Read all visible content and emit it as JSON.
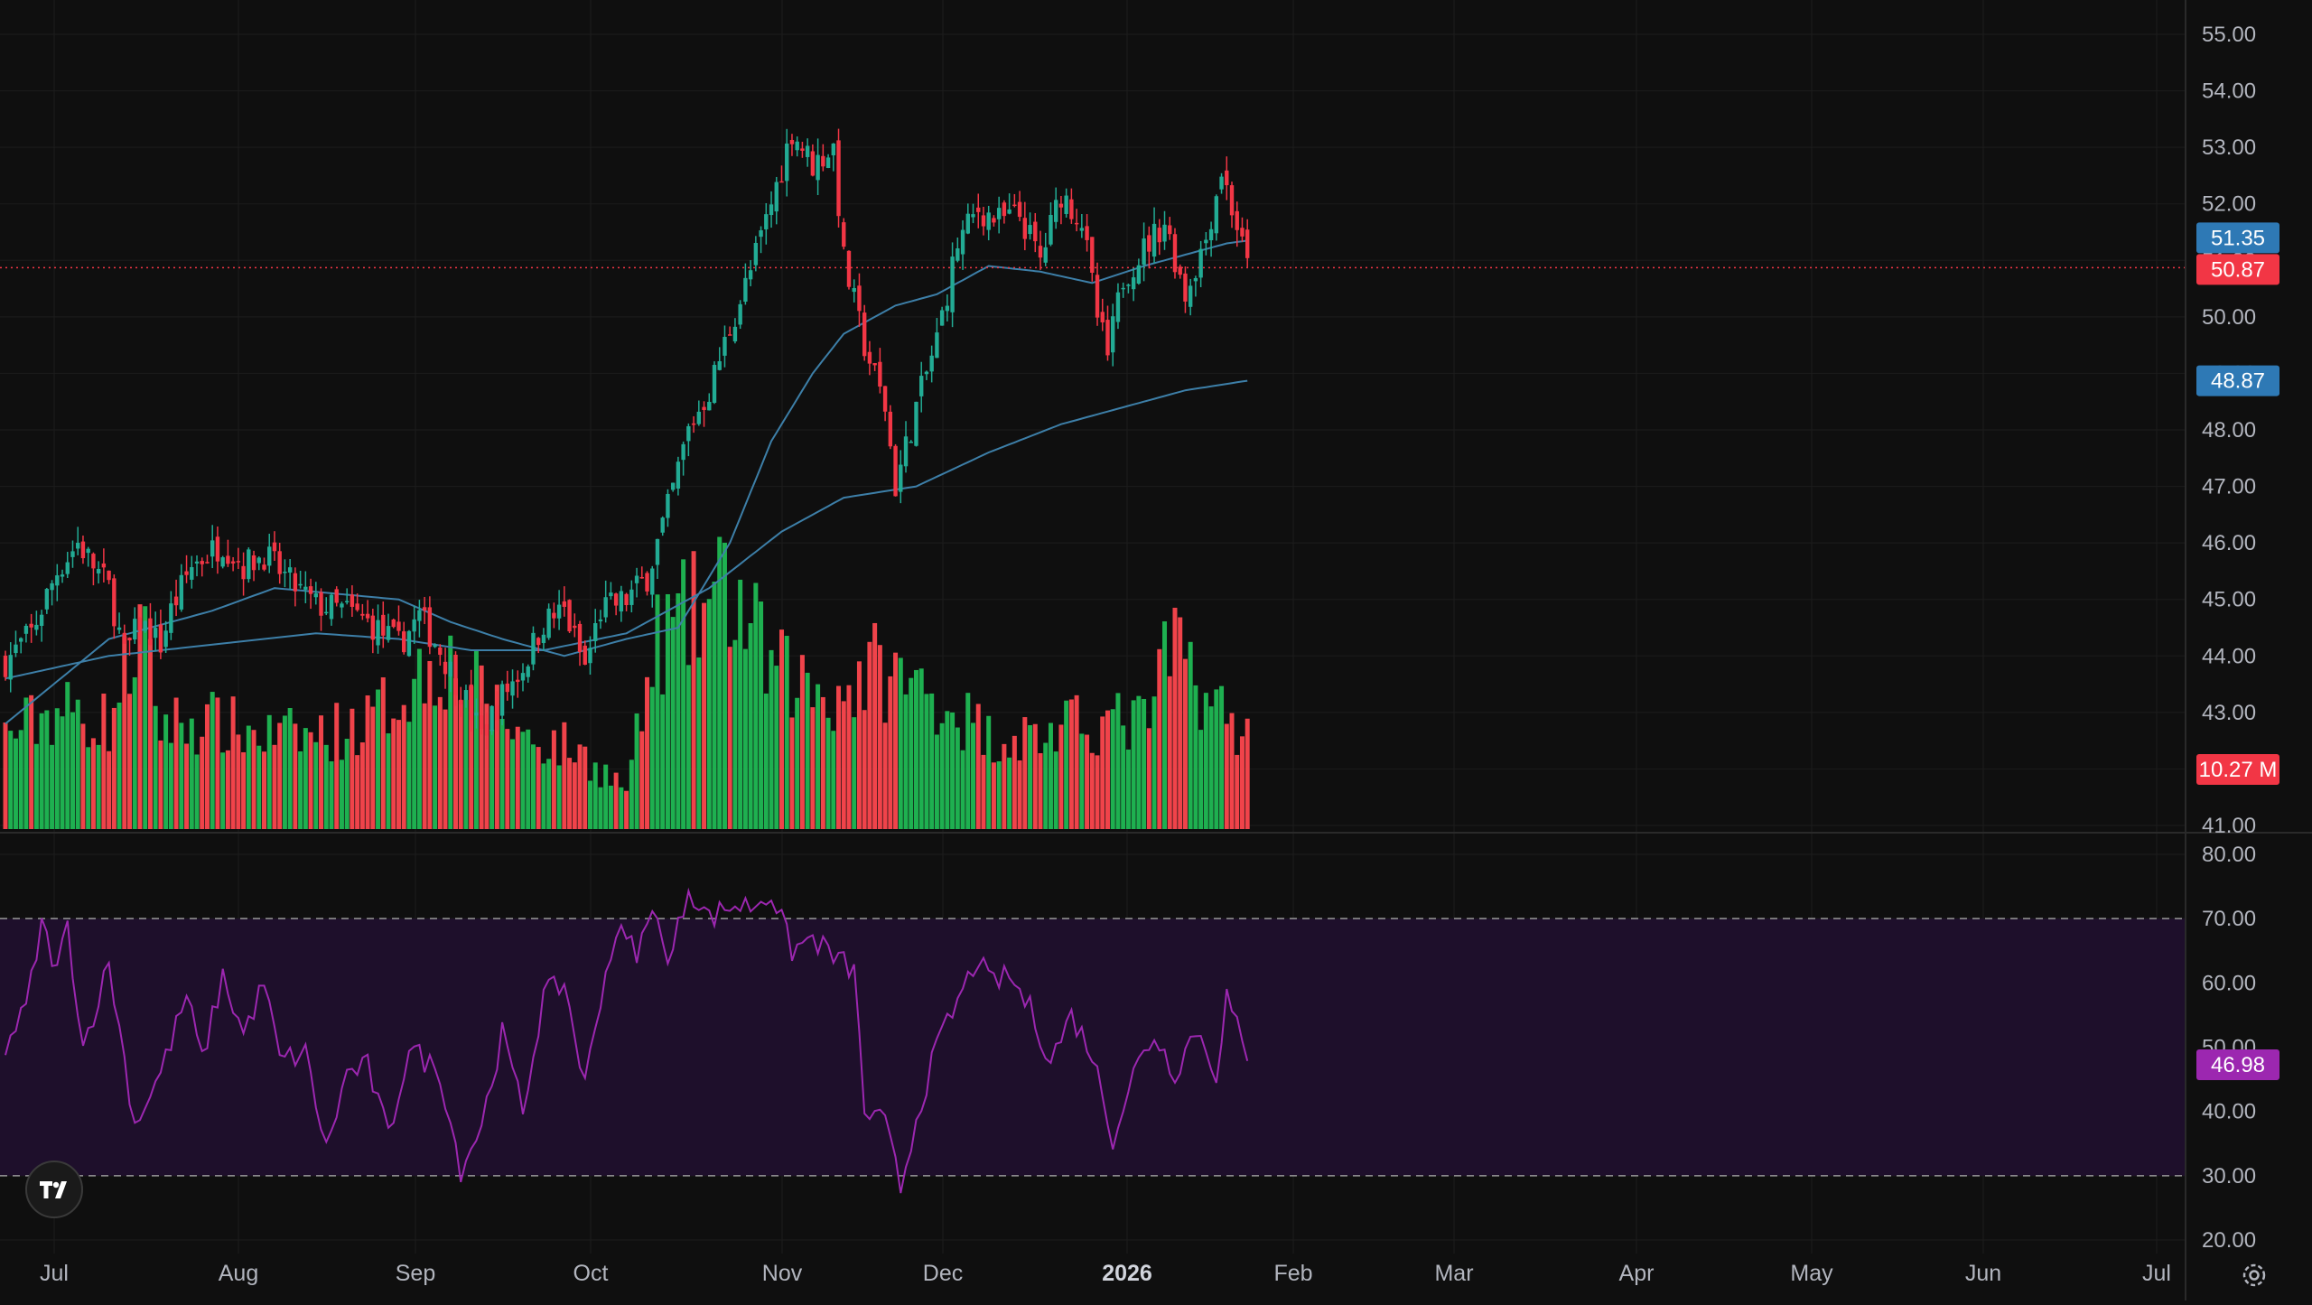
{
  "chart_data": {
    "type": "candlestick",
    "year_label": "2026",
    "x_axis_labels": [
      "Jul",
      "Aug",
      "Sep",
      "Oct",
      "Nov",
      "Dec",
      "2026",
      "Feb",
      "Mar",
      "Apr",
      "May",
      "Jun",
      "Jul"
    ],
    "price_axis": {
      "min": 41.0,
      "max": 55.0,
      "ticks": [
        "55.00",
        "54.00",
        "53.00",
        "52.00",
        "51.00",
        "50.00",
        "49.00",
        "48.00",
        "47.00",
        "46.00",
        "45.00",
        "44.00",
        "43.00",
        "42.00",
        "41.00"
      ]
    },
    "rsi_axis": {
      "min": 20,
      "max": 80,
      "ticks": [
        "80.00",
        "70.00",
        "60.00",
        "50.00",
        "40.00",
        "30.00",
        "20.00"
      ],
      "upper_band": 70,
      "lower_band": 30
    },
    "badges": {
      "ma_fast": {
        "value": "51.35",
        "color": "#2e79b5"
      },
      "last_price": {
        "value": "50.87",
        "color": "#f23645"
      },
      "ma_slow": {
        "value": "48.87",
        "color": "#2e79b5"
      },
      "volume": {
        "value": "10.27 M",
        "color": "#f23645"
      },
      "rsi": {
        "value": "46.98",
        "color": "#9c27b0"
      }
    },
    "colors": {
      "up": "#22ab94",
      "down": "#f23645",
      "vol_up": "#1eb050",
      "vol_down": "#f0434a",
      "ma": "#3d7fa8",
      "rsi": "#9c27b0",
      "rsi_band": "#1e0f2b",
      "grid": "#1c1c1c",
      "text": "#b2b5be"
    },
    "price_anchors": [
      [
        0,
        43.9
      ],
      [
        5,
        44.4
      ],
      [
        10,
        45.5
      ],
      [
        14,
        46.0
      ],
      [
        20,
        45.2
      ],
      [
        23,
        44.0
      ],
      [
        26,
        44.6
      ],
      [
        30,
        44.2
      ],
      [
        32,
        44.8
      ],
      [
        36,
        45.6
      ],
      [
        42,
        46.0
      ],
      [
        46,
        45.6
      ],
      [
        50,
        45.8
      ],
      [
        55,
        45.3
      ],
      [
        60,
        44.9
      ],
      [
        66,
        44.8
      ],
      [
        70,
        44.6
      ],
      [
        76,
        44.2
      ],
      [
        80,
        44.7
      ],
      [
        84,
        44.1
      ],
      [
        88,
        43.4
      ],
      [
        92,
        42.6
      ],
      [
        96,
        43.3
      ],
      [
        100,
        43.8
      ],
      [
        104,
        44.6
      ],
      [
        108,
        44.8
      ],
      [
        112,
        43.8
      ],
      [
        115,
        44.8
      ],
      [
        120,
        45.0
      ],
      [
        124,
        45.4
      ],
      [
        128,
        46.6
      ],
      [
        132,
        48.0
      ],
      [
        136,
        48.7
      ],
      [
        140,
        49.8
      ],
      [
        144,
        50.8
      ],
      [
        148,
        52.0
      ],
      [
        152,
        53.3
      ],
      [
        156,
        52.7
      ],
      [
        160,
        53.0
      ],
      [
        162,
        51.0
      ],
      [
        166,
        49.5
      ],
      [
        170,
        48.4
      ],
      [
        172,
        47.0
      ],
      [
        176,
        48.4
      ],
      [
        180,
        49.6
      ],
      [
        184,
        51.3
      ],
      [
        188,
        51.9
      ],
      [
        192,
        51.7
      ],
      [
        196,
        51.8
      ],
      [
        200,
        51.0
      ],
      [
        204,
        52.2
      ],
      [
        208,
        51.7
      ],
      [
        211,
        50.0
      ],
      [
        213,
        49.3
      ],
      [
        216,
        50.7
      ],
      [
        220,
        51.2
      ],
      [
        224,
        51.7
      ],
      [
        228,
        50.4
      ],
      [
        232,
        51.4
      ],
      [
        235,
        52.6
      ],
      [
        238,
        51.6
      ],
      [
        240,
        50.87
      ]
    ],
    "volume_anchors": [
      [
        0,
        7
      ],
      [
        10,
        9
      ],
      [
        20,
        8
      ],
      [
        26,
        15
      ],
      [
        30,
        8
      ],
      [
        40,
        8
      ],
      [
        50,
        7
      ],
      [
        60,
        7
      ],
      [
        70,
        8
      ],
      [
        84,
        13
      ],
      [
        92,
        10
      ],
      [
        100,
        7
      ],
      [
        110,
        6
      ],
      [
        120,
        3
      ],
      [
        126,
        14
      ],
      [
        140,
        18
      ],
      [
        148,
        12
      ],
      [
        160,
        10
      ],
      [
        168,
        12
      ],
      [
        180,
        10
      ],
      [
        190,
        7
      ],
      [
        200,
        7
      ],
      [
        210,
        8
      ],
      [
        220,
        8
      ],
      [
        226,
        14
      ],
      [
        234,
        9
      ],
      [
        240,
        7
      ]
    ],
    "rsi_anchors": [
      [
        0,
        50
      ],
      [
        4,
        56
      ],
      [
        7,
        69
      ],
      [
        10,
        62
      ],
      [
        12,
        69
      ],
      [
        15,
        50
      ],
      [
        20,
        63
      ],
      [
        25,
        38
      ],
      [
        30,
        46
      ],
      [
        35,
        58
      ],
      [
        38,
        48
      ],
      [
        42,
        61
      ],
      [
        46,
        52
      ],
      [
        50,
        60
      ],
      [
        53,
        48
      ],
      [
        58,
        49
      ],
      [
        62,
        34
      ],
      [
        66,
        46
      ],
      [
        70,
        47
      ],
      [
        74,
        36
      ],
      [
        78,
        50
      ],
      [
        84,
        46
      ],
      [
        88,
        31
      ],
      [
        92,
        38
      ],
      [
        96,
        52
      ],
      [
        100,
        40
      ],
      [
        104,
        58
      ],
      [
        108,
        60
      ],
      [
        112,
        44
      ],
      [
        115,
        58
      ],
      [
        118,
        68
      ],
      [
        122,
        65
      ],
      [
        126,
        72
      ],
      [
        128,
        62
      ],
      [
        132,
        75
      ],
      [
        136,
        70
      ],
      [
        140,
        72
      ],
      [
        144,
        72
      ],
      [
        148,
        74
      ],
      [
        152,
        65
      ],
      [
        156,
        67
      ],
      [
        160,
        64
      ],
      [
        164,
        62
      ],
      [
        166,
        40
      ],
      [
        170,
        38
      ],
      [
        173,
        28
      ],
      [
        176,
        39
      ],
      [
        180,
        50
      ],
      [
        184,
        57
      ],
      [
        188,
        64
      ],
      [
        190,
        60
      ],
      [
        194,
        61
      ],
      [
        198,
        56
      ],
      [
        202,
        48
      ],
      [
        206,
        55
      ],
      [
        210,
        49
      ],
      [
        214,
        36
      ],
      [
        218,
        46
      ],
      [
        222,
        52
      ],
      [
        226,
        46
      ],
      [
        230,
        53
      ],
      [
        234,
        46
      ],
      [
        236,
        58
      ],
      [
        238,
        53
      ],
      [
        240,
        46.98
      ]
    ],
    "ma_fast_anchors": [
      [
        0,
        42.8
      ],
      [
        20,
        44.3
      ],
      [
        40,
        44.8
      ],
      [
        52,
        45.2
      ],
      [
        64,
        45.1
      ],
      [
        76,
        45.0
      ],
      [
        86,
        44.6
      ],
      [
        96,
        44.3
      ],
      [
        108,
        44.0
      ],
      [
        120,
        44.3
      ],
      [
        130,
        44.5
      ],
      [
        140,
        46.0
      ],
      [
        148,
        47.8
      ],
      [
        156,
        49.0
      ],
      [
        162,
        49.7
      ],
      [
        172,
        50.2
      ],
      [
        180,
        50.4
      ],
      [
        190,
        50.9
      ],
      [
        200,
        50.8
      ],
      [
        210,
        50.6
      ],
      [
        220,
        50.9
      ],
      [
        228,
        51.1
      ],
      [
        236,
        51.3
      ],
      [
        240,
        51.35
      ]
    ],
    "ma_slow_anchors": [
      [
        0,
        43.6
      ],
      [
        20,
        44.0
      ],
      [
        40,
        44.2
      ],
      [
        60,
        44.4
      ],
      [
        76,
        44.3
      ],
      [
        90,
        44.1
      ],
      [
        104,
        44.1
      ],
      [
        120,
        44.4
      ],
      [
        136,
        45.2
      ],
      [
        150,
        46.2
      ],
      [
        162,
        46.8
      ],
      [
        176,
        47.0
      ],
      [
        190,
        47.6
      ],
      [
        204,
        48.1
      ],
      [
        216,
        48.4
      ],
      [
        228,
        48.7
      ],
      [
        240,
        48.87
      ]
    ]
  }
}
